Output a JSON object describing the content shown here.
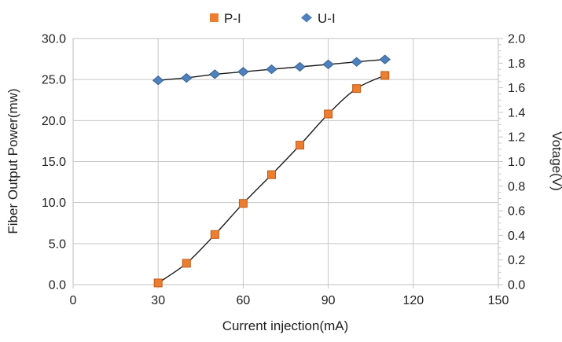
{
  "chart_data": {
    "type": "line",
    "title": "",
    "xlabel": "Current injection(mA)",
    "ylabel_left": "Fiber Output Power(mw)",
    "ylabel_right": "Votage(V)",
    "x_axis": {
      "min": 0,
      "max": 150,
      "tick_step": 30,
      "labels": [
        "0",
        "30",
        "60",
        "90",
        "120",
        "150"
      ]
    },
    "y_left_axis": {
      "min": 0,
      "max": 30,
      "tick_step": 5,
      "labels": [
        "0.0",
        "5.0",
        "10.0",
        "15.0",
        "20.0",
        "25.0",
        "30.0"
      ]
    },
    "y_right_axis": {
      "min": 0,
      "max": 2,
      "tick_step": 0.2,
      "minor_tick_step": 0.05,
      "labels": [
        "0.0",
        "0.2",
        "0.4",
        "0.6",
        "0.8",
        "1.0",
        "1.2",
        "1.4",
        "1.6",
        "1.8",
        "2.0"
      ]
    },
    "x": [
      30,
      40,
      50,
      60,
      70,
      80,
      90,
      100,
      110
    ],
    "series": [
      {
        "name": "P-I",
        "axis": "left",
        "marker": "square",
        "marker_color": "#ED7D31",
        "marker_border": "#BE5B17",
        "line_color": "#1a1a1a",
        "smooth": true,
        "values": [
          0.2,
          2.6,
          6.1,
          9.9,
          13.4,
          17.0,
          20.8,
          23.9,
          25.5
        ]
      },
      {
        "name": "U-I",
        "axis": "right",
        "marker": "diamond",
        "marker_color": "#4E81BD",
        "marker_border": "#36618F",
        "line_color": "#1a1a1a",
        "smooth": false,
        "values": [
          1.66,
          1.68,
          1.71,
          1.73,
          1.75,
          1.77,
          1.79,
          1.81,
          1.83
        ]
      }
    ],
    "legend": {
      "position": "top",
      "entries": [
        "P-I",
        "U-I"
      ]
    },
    "grid": {
      "show_horizontal": true,
      "show_vertical": true,
      "color": "#C6C6C6"
    },
    "plot_border_color": "#BFBFBF"
  }
}
